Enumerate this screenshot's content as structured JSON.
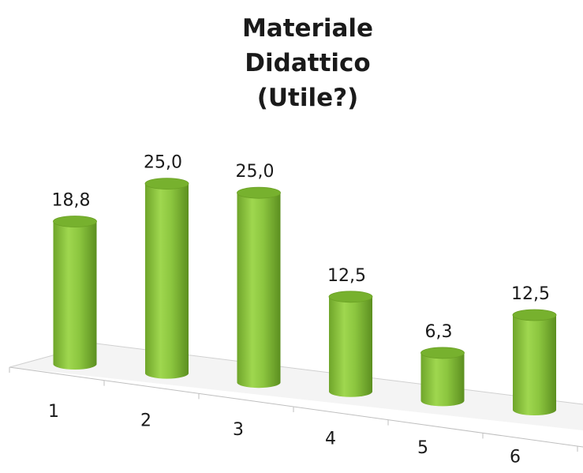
{
  "chart_data": {
    "type": "bar",
    "title_lines": [
      "Materiale",
      "Didattico",
      "(Utile?)"
    ],
    "categories": [
      "1",
      "2",
      "3",
      "4",
      "5",
      "6"
    ],
    "values": [
      18.8,
      25.0,
      25.0,
      12.5,
      6.3,
      12.5
    ],
    "value_labels": [
      "18,8",
      "25,0",
      "25,0",
      "12,5",
      "6,3",
      "12,5"
    ],
    "bar_color": "#8cc63f",
    "grid": false,
    "legend": "none"
  }
}
